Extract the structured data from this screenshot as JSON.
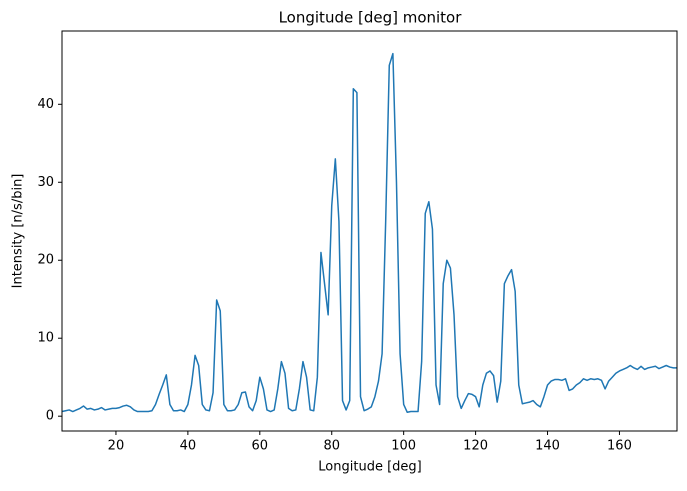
{
  "chart_data": {
    "type": "line",
    "title": "Longitude [deg] monitor",
    "xlabel": "Longitude [deg]",
    "ylabel": "Intensity [n/s/bin]",
    "x": [
      5,
      6,
      7,
      8,
      9,
      10,
      11,
      12,
      13,
      14,
      15,
      16,
      17,
      18,
      19,
      20,
      21,
      22,
      23,
      24,
      25,
      26,
      27,
      28,
      29,
      30,
      31,
      32,
      33,
      34,
      35,
      36,
      37,
      38,
      39,
      40,
      41,
      42,
      43,
      44,
      45,
      46,
      47,
      48,
      49,
      50,
      51,
      52,
      53,
      54,
      55,
      56,
      57,
      58,
      59,
      60,
      61,
      62,
      63,
      64,
      65,
      66,
      67,
      68,
      69,
      70,
      71,
      72,
      73,
      74,
      75,
      76,
      77,
      78,
      79,
      80,
      81,
      82,
      83,
      84,
      85,
      86,
      87,
      88,
      89,
      90,
      91,
      92,
      93,
      94,
      95,
      96,
      97,
      98,
      99,
      100,
      101,
      102,
      103,
      104,
      105,
      106,
      107,
      108,
      109,
      110,
      111,
      112,
      113,
      114,
      115,
      116,
      117,
      118,
      119,
      120,
      121,
      122,
      123,
      124,
      125,
      126,
      127,
      128,
      129,
      130,
      131,
      132,
      133,
      134,
      135,
      136,
      137,
      138,
      139,
      140,
      141,
      142,
      143,
      144,
      145,
      146,
      147,
      148,
      149,
      150,
      151,
      152,
      153,
      154,
      155,
      156,
      157,
      158,
      159,
      160,
      161,
      162,
      163,
      164,
      165,
      166,
      167,
      168,
      169,
      170,
      171,
      172,
      173,
      174,
      175,
      176
    ],
    "series": [
      {
        "name": "Intensity",
        "color": "#1f77b4",
        "values": [
          0.6,
          0.7,
          0.8,
          0.6,
          0.8,
          1.0,
          1.3,
          0.9,
          1.0,
          0.8,
          0.9,
          1.1,
          0.8,
          0.9,
          1.0,
          1.0,
          1.1,
          1.3,
          1.4,
          1.2,
          0.8,
          0.6,
          0.6,
          0.6,
          0.6,
          0.7,
          1.5,
          2.8,
          4.0,
          5.3,
          1.5,
          0.7,
          0.7,
          0.8,
          0.6,
          1.5,
          4.0,
          7.8,
          6.5,
          1.5,
          0.8,
          0.7,
          3.0,
          14.9,
          13.5,
          1.5,
          0.7,
          0.7,
          0.8,
          1.5,
          3.0,
          3.1,
          1.2,
          0.7,
          2.0,
          5.0,
          3.5,
          0.8,
          0.6,
          0.8,
          3.5,
          7.0,
          5.5,
          1.0,
          0.7,
          0.8,
          3.5,
          7.0,
          5.0,
          0.8,
          0.7,
          5.0,
          21.0,
          17.0,
          13.0,
          27.0,
          33.0,
          25.0,
          2.0,
          0.8,
          2.0,
          42.0,
          41.5,
          2.5,
          0.7,
          0.9,
          1.2,
          2.5,
          4.5,
          8.0,
          25.0,
          45.0,
          46.5,
          30.0,
          8.0,
          1.5,
          0.5,
          0.6,
          0.6,
          0.6,
          7.0,
          26.0,
          27.5,
          24.0,
          4.0,
          1.5,
          17.0,
          20.0,
          19.0,
          13.0,
          2.5,
          1.0,
          2.0,
          2.9,
          2.8,
          2.5,
          1.2,
          4.0,
          5.5,
          5.8,
          5.2,
          1.8,
          4.5,
          17.0,
          18.0,
          18.8,
          16.0,
          4.0,
          1.6,
          1.7,
          1.8,
          2.0,
          1.5,
          1.2,
          2.5,
          4.0,
          4.5,
          4.7,
          4.7,
          4.6,
          4.8,
          3.3,
          3.5,
          4.0,
          4.3,
          4.8,
          4.6,
          4.8,
          4.7,
          4.8,
          4.6,
          3.5,
          4.5,
          5.0,
          5.5,
          5.8,
          6.0,
          6.2,
          6.5,
          6.2,
          6.0,
          6.4,
          6.0,
          6.2,
          6.3,
          6.4,
          6.1,
          6.3,
          6.5,
          6.3,
          6.2,
          6.2
        ]
      }
    ],
    "xlim": [
      5,
      176
    ],
    "ylim": [
      -1.9,
      49.4
    ],
    "xticks": [
      20,
      40,
      60,
      80,
      100,
      120,
      140,
      160
    ],
    "yticks": [
      0,
      10,
      20,
      30,
      40
    ],
    "grid": false
  }
}
